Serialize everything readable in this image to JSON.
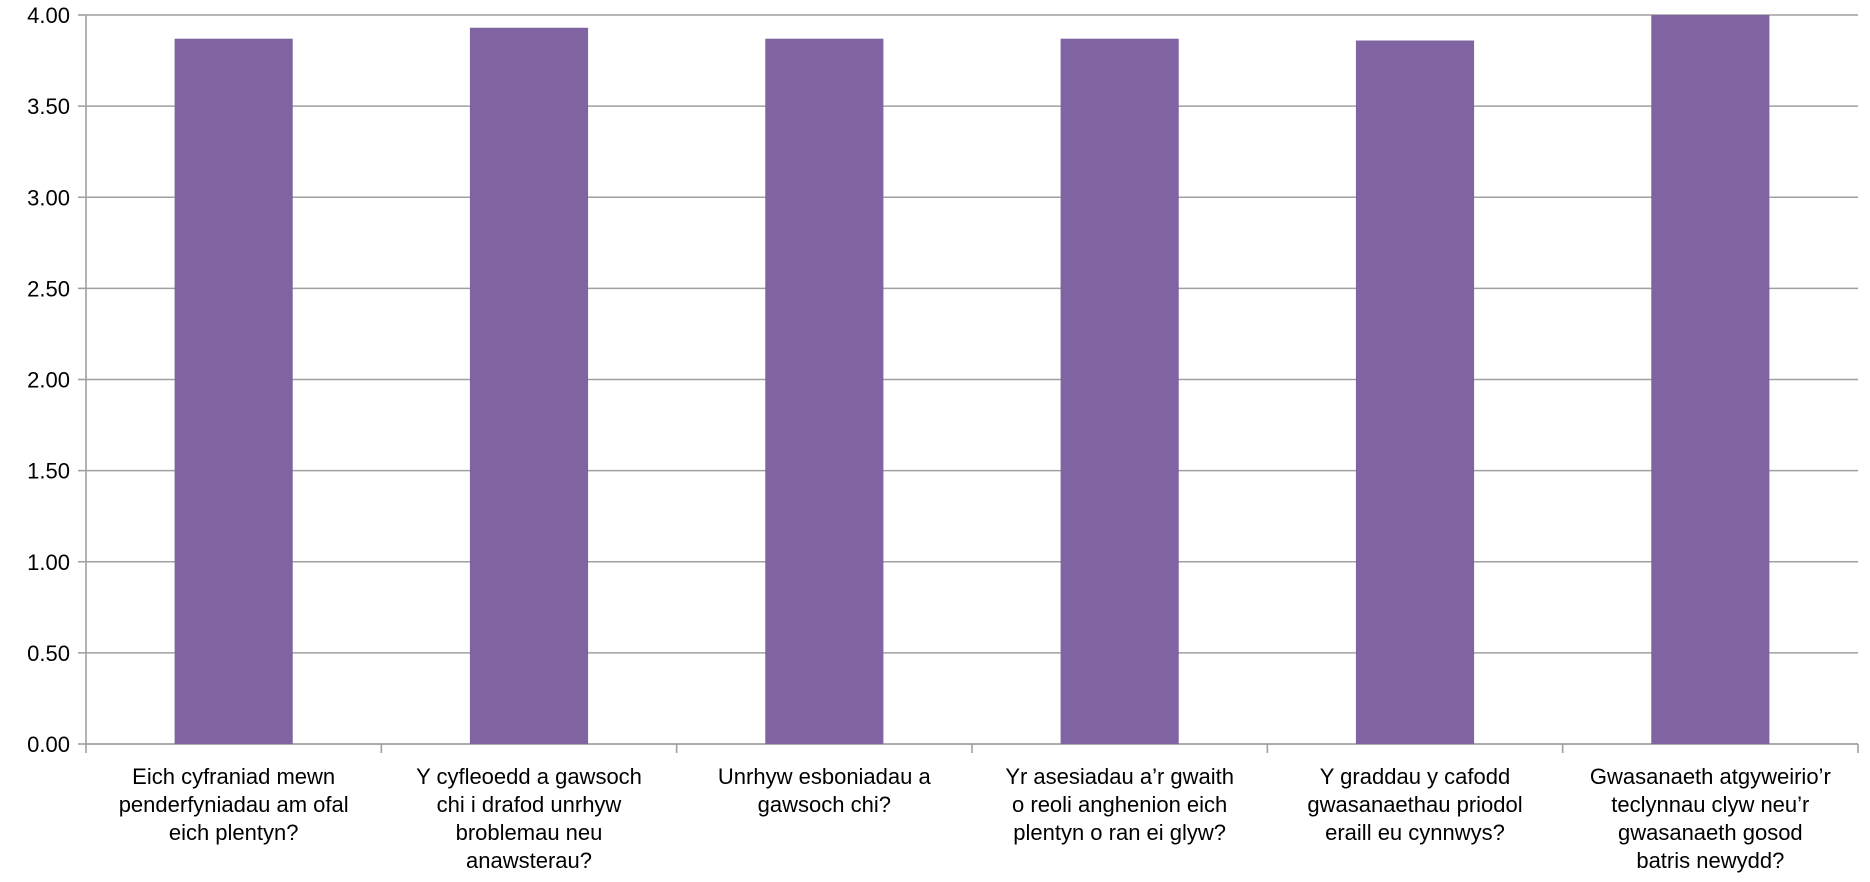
{
  "chart_data": {
    "type": "bar",
    "categories": [
      "Eich cyfraniad mewn penderfyniadau am ofal eich plentyn?",
      "Y cyfleoedd a gawsoch chi i drafod unrhyw broblemau neu anawsterau?",
      "Unrhyw esboniadau a gawsoch chi?",
      "Yr asesiadau a’r gwaith o reoli anghenion eich plentyn o ran ei glyw?",
      "Y graddau y cafodd gwasanaethau priodol eraill eu cynnwys?",
      "Gwasanaeth atgyweirio’r teclynnau clyw neu’r gwasanaeth gosod batris newydd?"
    ],
    "category_lines": [
      [
        "Eich cyfraniad mewn",
        "penderfyniadau am ofal",
        "eich plentyn?"
      ],
      [
        "Y cyfleoedd a gawsoch",
        "chi i drafod unrhyw",
        "broblemau neu",
        "anawsterau?"
      ],
      [
        "Unrhyw esboniadau a",
        "gawsoch chi?"
      ],
      [
        "Yr asesiadau a’r gwaith",
        "o reoli anghenion eich",
        "plentyn o ran ei glyw?"
      ],
      [
        "Y graddau y cafodd",
        "gwasanaethau priodol",
        "eraill eu cynnwys?"
      ],
      [
        "Gwasanaeth atgyweirio’r",
        "teclynnau clyw neu’r",
        "gwasanaeth gosod",
        "batris newydd?"
      ]
    ],
    "values": [
      3.87,
      3.93,
      3.87,
      3.87,
      3.86,
      4.0
    ],
    "ylim": [
      0,
      4
    ],
    "yticks": [
      "0.00",
      "0.50",
      "1.00",
      "1.50",
      "2.00",
      "2.50",
      "3.00",
      "3.50",
      "4.00"
    ],
    "title": "",
    "xlabel": "",
    "ylabel": "",
    "grid": true,
    "bar_color": "#8064a2",
    "grid_color": "#a0a0a0",
    "axis_color": "#a0a0a0"
  }
}
